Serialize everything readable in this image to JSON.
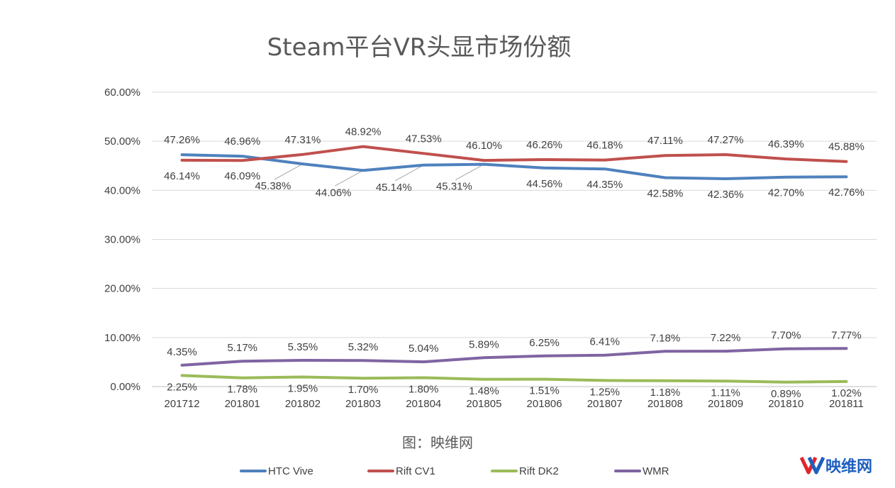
{
  "chart_data": {
    "type": "line",
    "title": "Steam平台VR头显市场份额",
    "xlabel": "",
    "ylabel": "",
    "ylim": [
      0,
      60
    ],
    "ytick_labels": [
      "0.00%",
      "10.00%",
      "20.00%",
      "30.00%",
      "40.00%",
      "50.00%",
      "60.00%"
    ],
    "grid": "horizontal",
    "legend_position": "bottom",
    "categories": [
      "201712",
      "201801",
      "201802",
      "201803",
      "201804",
      "201805",
      "201806",
      "201807",
      "201808",
      "201809",
      "201810",
      "201811"
    ],
    "series": [
      {
        "name": "HTC Vive",
        "color": "#4f81bd",
        "values": [
          47.26,
          46.96,
          45.38,
          44.06,
          45.14,
          45.31,
          44.56,
          44.35,
          42.58,
          42.36,
          42.7,
          42.76
        ],
        "labels": [
          "47.26%",
          "46.96%",
          "45.38%",
          "44.06%",
          "45.14%",
          "45.31%",
          "44.56%",
          "44.35%",
          "42.58%",
          "42.36%",
          "42.70%",
          "42.76%"
        ]
      },
      {
        "name": "Rift CV1",
        "color": "#c0504d",
        "values": [
          46.14,
          46.09,
          47.31,
          48.92,
          47.53,
          46.1,
          46.26,
          46.18,
          47.11,
          47.27,
          46.39,
          45.88
        ],
        "labels": [
          "46.14%",
          "46.09%",
          "47.31%",
          "48.92%",
          "47.53%",
          "46.10%",
          "46.26%",
          "46.18%",
          "47.11%",
          "47.27%",
          "46.39%",
          "45.88%"
        ]
      },
      {
        "name": "Rift DK2",
        "color": "#9bbb59",
        "values": [
          2.25,
          1.78,
          1.95,
          1.7,
          1.8,
          1.48,
          1.51,
          1.25,
          1.18,
          1.11,
          0.89,
          1.02
        ],
        "labels": [
          "2.25%",
          "1.78%",
          "1.95%",
          "1.70%",
          "1.80%",
          "1.48%",
          "1.51%",
          "1.25%",
          "1.18%",
          "1.11%",
          "0.89%",
          "1.02%"
        ]
      },
      {
        "name": "WMR",
        "color": "#8064a2",
        "values": [
          4.35,
          5.17,
          5.35,
          5.32,
          5.04,
          5.89,
          6.25,
          6.41,
          7.18,
          7.22,
          7.7,
          7.77
        ],
        "labels": [
          "4.35%",
          "5.17%",
          "5.35%",
          "5.32%",
          "5.04%",
          "5.89%",
          "6.25%",
          "6.41%",
          "7.18%",
          "7.22%",
          "7.70%",
          "7.77%"
        ]
      }
    ]
  },
  "caption": "图：映维网",
  "logo": {
    "text": "映维网",
    "mark": "YV",
    "color": "#1f5fbf",
    "accent": "#e0262b"
  }
}
